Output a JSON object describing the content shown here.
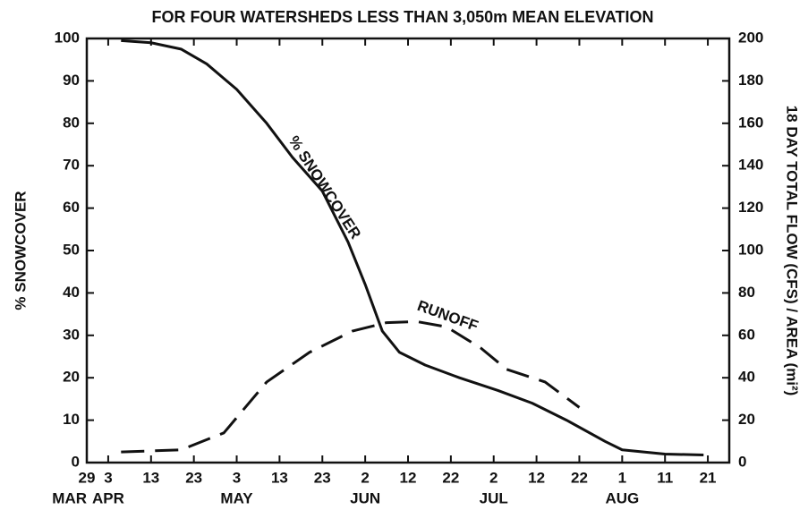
{
  "chart_data": {
    "type": "line",
    "title": "FOR FOUR WATERSHEDS LESS THAN 3,050m MEAN ELEVATION",
    "ylabel": "% SNOWCOVER",
    "y2label": "18 DAY TOTAL FLOW (CFS) / AREA (mi²)",
    "xlim": [
      88,
      238
    ],
    "xticks": [
      {
        "value": 88,
        "label": "29"
      },
      {
        "value": 93,
        "label": "3"
      },
      {
        "value": 103,
        "label": "13"
      },
      {
        "value": 113,
        "label": "23"
      },
      {
        "value": 123,
        "label": "3"
      },
      {
        "value": 133,
        "label": "13"
      },
      {
        "value": 143,
        "label": "23"
      },
      {
        "value": 153,
        "label": "2"
      },
      {
        "value": 163,
        "label": "12"
      },
      {
        "value": 173,
        "label": "22"
      },
      {
        "value": 183,
        "label": "2"
      },
      {
        "value": 193,
        "label": "12"
      },
      {
        "value": 203,
        "label": "22"
      },
      {
        "value": 213,
        "label": "1"
      },
      {
        "value": 223,
        "label": "11"
      },
      {
        "value": 233,
        "label": "21"
      }
    ],
    "x_groups": [
      {
        "value": 88,
        "label": "MAR"
      },
      {
        "value": 93,
        "label": "APR"
      },
      {
        "value": 123,
        "label": "MAY"
      },
      {
        "value": 153,
        "label": "JUN"
      },
      {
        "value": 183,
        "label": "JUL"
      },
      {
        "value": 213,
        "label": "AUG"
      }
    ],
    "ylim": [
      0,
      100
    ],
    "yticks": [
      0,
      10,
      20,
      30,
      40,
      50,
      60,
      70,
      80,
      90,
      100
    ],
    "y2lim": [
      0,
      200
    ],
    "y2ticks": [
      0,
      20,
      40,
      60,
      80,
      100,
      120,
      140,
      160,
      180,
      200
    ],
    "series": [
      {
        "name": "% SNOWCOVER",
        "color": "#111111",
        "dash": "solid",
        "x": [
          96,
          103,
          110,
          116,
          123,
          130,
          136,
          143,
          149,
          153,
          157,
          161,
          167,
          175,
          184,
          192,
          200,
          209,
          213,
          223,
          232
        ],
        "values": [
          99.5,
          99,
          97.5,
          94,
          88,
          80,
          72,
          64,
          52,
          42,
          31,
          26,
          23,
          20,
          17,
          14,
          10,
          5,
          3,
          2,
          1.8
        ]
      },
      {
        "name": "RUNOFF",
        "color": "#111111",
        "dash": "dashed",
        "axis": "y2",
        "x": [
          96,
          110,
          120,
          130,
          140,
          150,
          158,
          165,
          172,
          180,
          186,
          195,
          203
        ],
        "values": [
          5,
          6,
          14,
          38,
          52,
          62,
          66,
          66.5,
          64,
          54,
          44,
          38,
          26
        ]
      }
    ]
  }
}
